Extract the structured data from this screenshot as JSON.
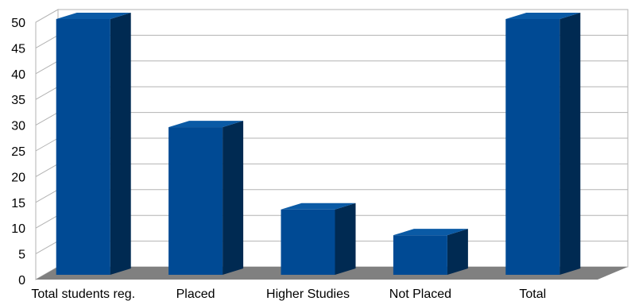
{
  "chart_data": {
    "type": "bar",
    "style": "3d",
    "categories": [
      "Total students reg.",
      "Placed",
      "Higher Studies",
      "Not Placed",
      "Total"
    ],
    "values": [
      50,
      29,
      13,
      8,
      50
    ],
    "title": "",
    "xlabel": "",
    "ylabel": "",
    "ylim": [
      0,
      50
    ],
    "yticks": [
      0,
      5,
      10,
      15,
      20,
      25,
      30,
      35,
      40,
      45,
      50
    ],
    "grid": true,
    "legend": "none",
    "colors": {
      "bar_front": "#004a94",
      "bar_side": "#002a52",
      "bar_top": "#0a5aa5",
      "floor": "#808080",
      "wall": "#ffffff",
      "gridline": "#b3b3b3"
    }
  }
}
